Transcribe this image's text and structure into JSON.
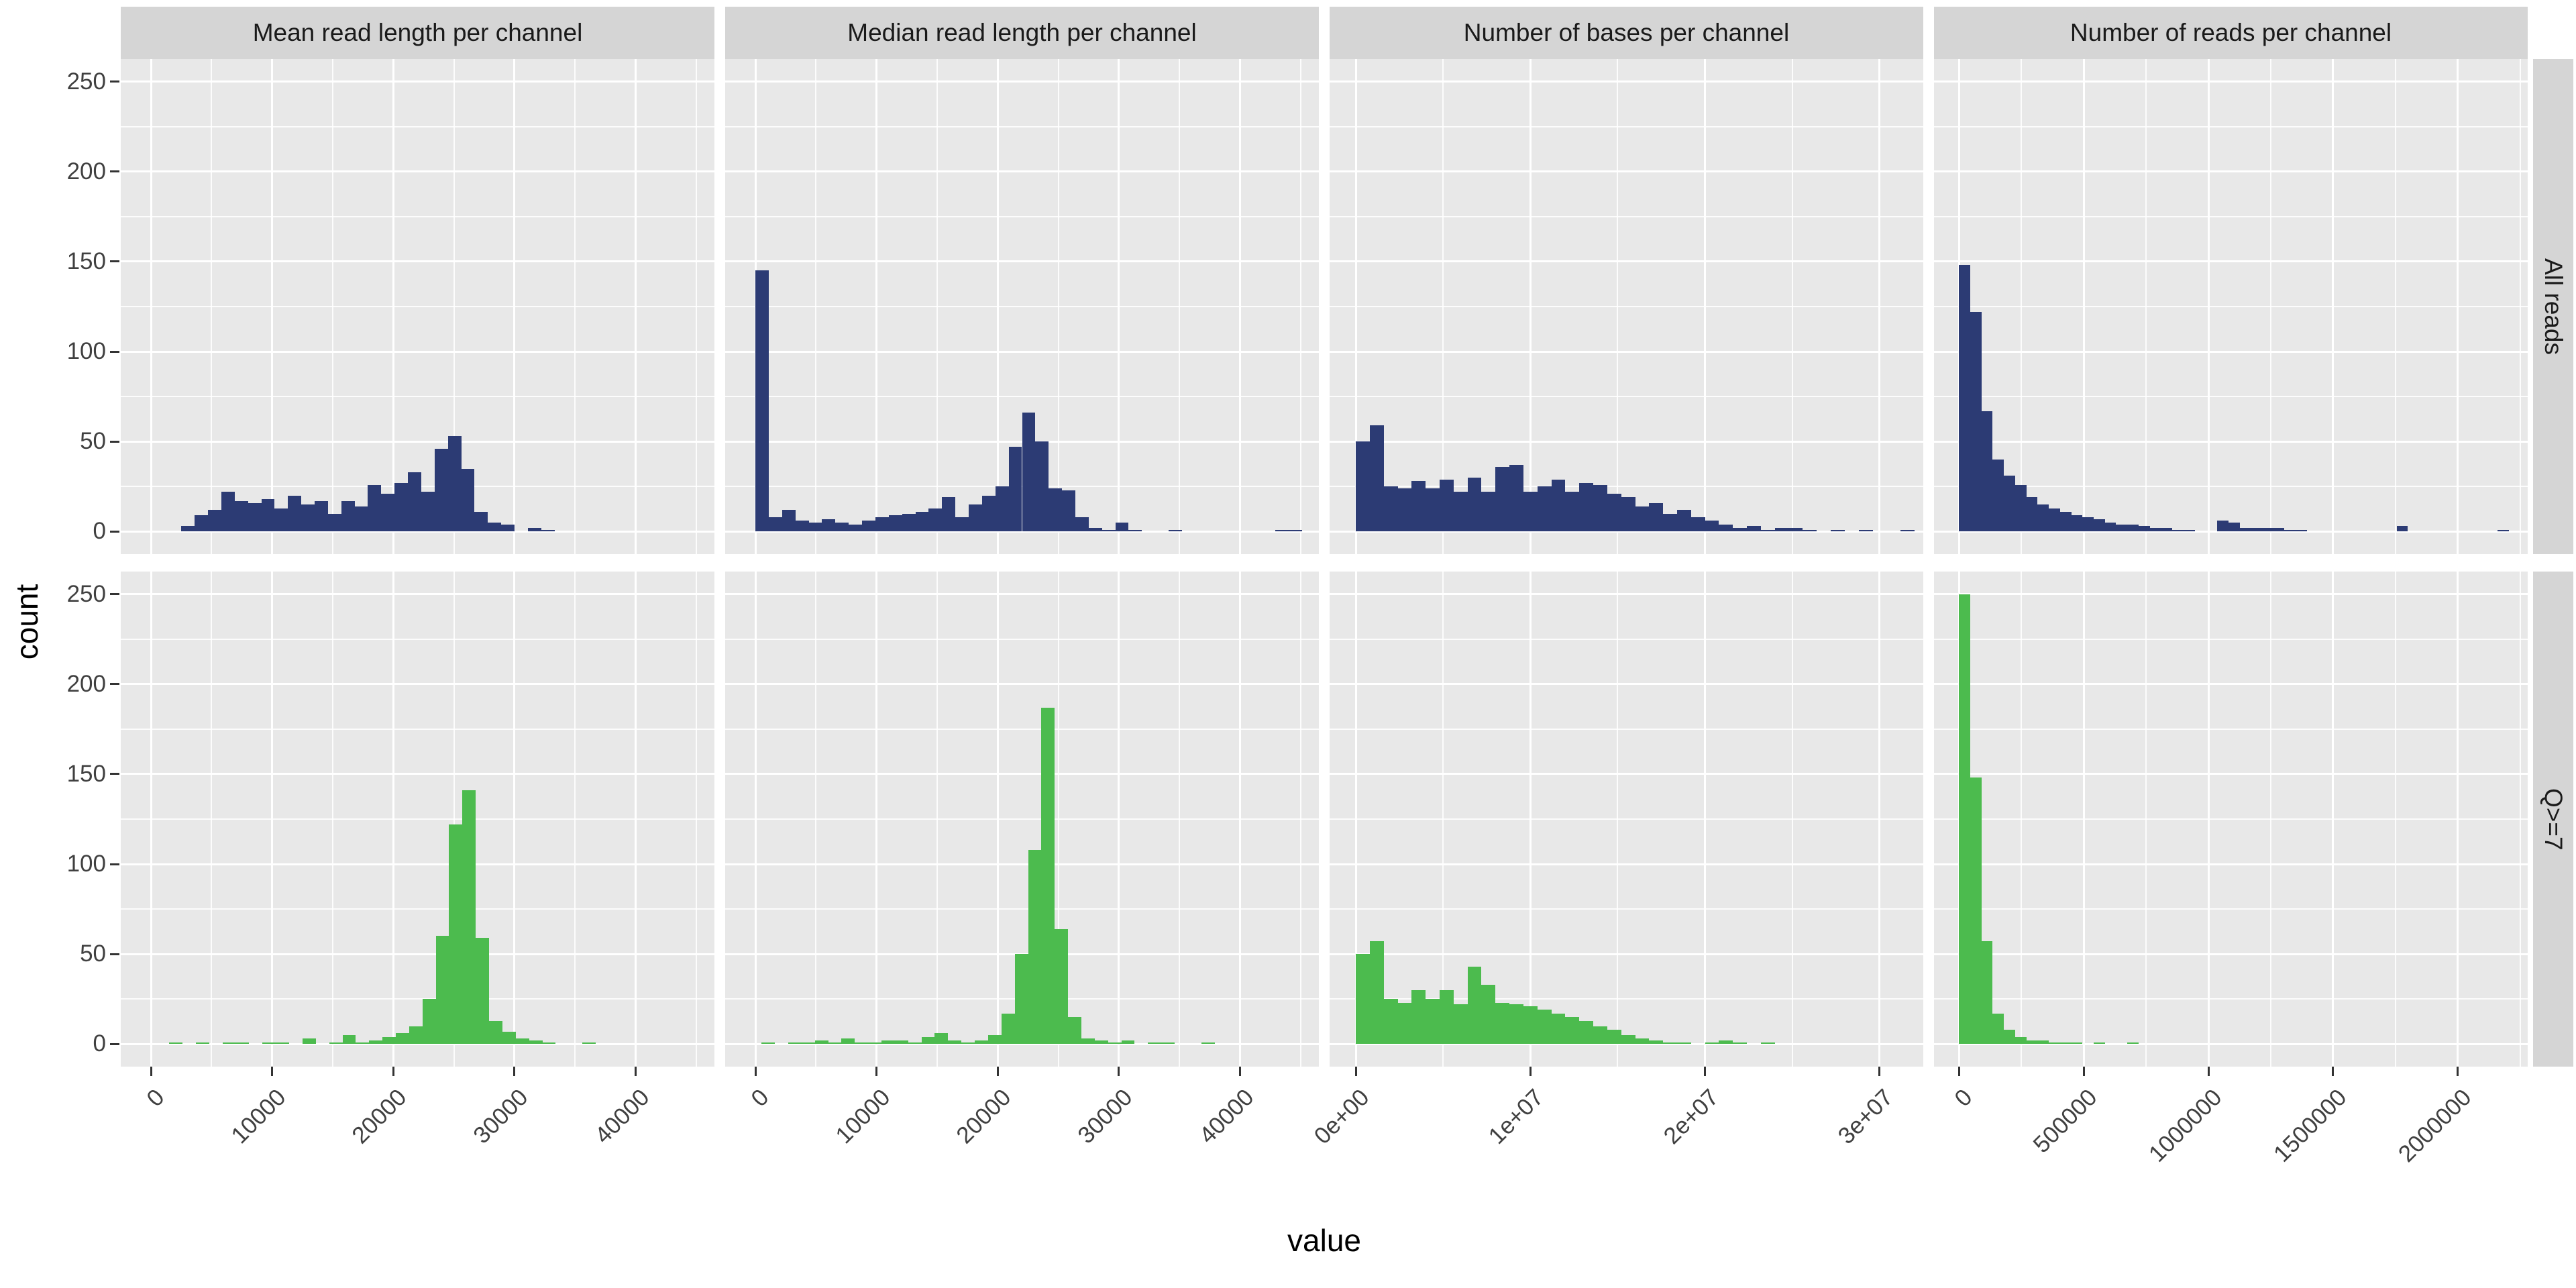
{
  "chart_data": {
    "type": "bar",
    "subtype": "faceted-histogram",
    "xlabel": "value",
    "ylabel": "count",
    "facet_rows": [
      "All reads",
      "Q>=7"
    ],
    "legend_position": "none",
    "grid": "on",
    "colors": {
      "all_reads": "#2c3b74",
      "q7": "#4cbb4e",
      "panel_bg": "#e8e8e8",
      "strip_bg": "#d5d5d5",
      "grid": "#ffffff",
      "tick_text": "#404040"
    },
    "y_axis": {
      "range": [
        -12.5,
        262.5
      ],
      "major_ticks": [
        0,
        50,
        100,
        150,
        200,
        250
      ],
      "minor_ticks": [
        25,
        75,
        125,
        175,
        225
      ]
    },
    "columns": [
      {
        "title": "Mean read length per channel",
        "x_range": [
          -2500,
          46500
        ],
        "ticks": [
          {
            "v": 0,
            "label": "0"
          },
          {
            "v": 10000,
            "label": "10000"
          },
          {
            "v": 20000,
            "label": "20000"
          },
          {
            "v": 30000,
            "label": "30000"
          },
          {
            "v": 40000,
            "label": "40000"
          }
        ]
      },
      {
        "title": "Median read length per channel",
        "x_range": [
          -2500,
          46500
        ],
        "ticks": [
          {
            "v": 0,
            "label": "0"
          },
          {
            "v": 10000,
            "label": "10000"
          },
          {
            "v": 20000,
            "label": "20000"
          },
          {
            "v": 30000,
            "label": "30000"
          },
          {
            "v": 40000,
            "label": "40000"
          }
        ]
      },
      {
        "title": "Number of bases per channel",
        "x_range": [
          -1500000,
          32500000
        ],
        "ticks": [
          {
            "v": 0,
            "label": "0e+00"
          },
          {
            "v": 10000000,
            "label": "1e+07"
          },
          {
            "v": 20000000,
            "label": "2e+07"
          },
          {
            "v": 30000000,
            "label": "3e+07"
          }
        ]
      },
      {
        "title": "Number of reads per channel",
        "x_range": [
          -100000,
          2280000
        ],
        "ticks": [
          {
            "v": 0,
            "label": "0"
          },
          {
            "v": 500000,
            "label": "500000"
          },
          {
            "v": 1000000,
            "label": "1000000"
          },
          {
            "v": 1500000,
            "label": "1500000"
          },
          {
            "v": 2000000,
            "label": "2000000"
          }
        ]
      }
    ],
    "panels": [
      {
        "row": 0,
        "col": 0,
        "series": "All reads",
        "color": "#2c3b74",
        "bin_start": 2500,
        "bin_width": 1100,
        "counts": [
          3,
          9,
          12,
          22,
          17,
          16,
          18,
          13,
          20,
          15,
          17,
          10,
          17,
          14,
          26,
          21,
          27,
          33,
          22,
          46,
          53,
          35,
          11,
          5,
          4,
          0,
          2,
          1
        ]
      },
      {
        "row": 0,
        "col": 1,
        "series": "All reads",
        "color": "#2c3b74",
        "bin_start": 0,
        "bin_width": 1100,
        "counts": [
          145,
          8,
          12,
          6,
          5,
          7,
          5,
          4,
          6,
          8,
          9,
          10,
          11,
          13,
          19,
          8,
          15,
          20,
          25,
          47,
          66,
          50,
          24,
          23,
          8,
          2,
          1,
          5,
          1,
          0,
          0,
          1,
          0,
          0,
          0,
          0,
          0,
          0,
          0,
          1,
          1
        ]
      },
      {
        "row": 0,
        "col": 2,
        "series": "All reads",
        "color": "#2c3b74",
        "bin_start": 0,
        "bin_width": 800000,
        "counts": [
          50,
          59,
          25,
          24,
          28,
          24,
          29,
          22,
          30,
          22,
          36,
          37,
          22,
          25,
          29,
          22,
          27,
          26,
          21,
          19,
          14,
          16,
          10,
          12,
          8,
          6,
          4,
          2,
          3,
          1,
          2,
          2,
          1,
          0,
          1,
          0,
          1,
          0,
          0,
          1
        ]
      },
      {
        "row": 0,
        "col": 3,
        "series": "All reads",
        "color": "#2c3b74",
        "bin_start": 0,
        "bin_width": 45000,
        "counts": [
          148,
          122,
          67,
          40,
          31,
          26,
          19,
          15,
          13,
          11,
          9,
          8,
          7,
          5,
          4,
          4,
          3,
          2,
          2,
          1,
          1,
          0,
          0,
          6,
          5,
          2,
          2,
          2,
          2,
          1,
          1,
          0,
          0,
          0,
          0,
          0,
          0,
          0,
          0,
          3,
          0,
          0,
          0,
          0,
          0,
          0,
          0,
          0,
          1
        ]
      },
      {
        "row": 1,
        "col": 0,
        "series": "Q>=7",
        "color": "#4cbb4e",
        "bin_start": 1500,
        "bin_width": 1100,
        "counts": [
          1,
          0,
          1,
          0,
          1,
          1,
          0,
          1,
          1,
          0,
          3,
          0,
          1,
          5,
          1,
          2,
          4,
          6,
          10,
          25,
          60,
          122,
          141,
          59,
          13,
          7,
          3,
          2,
          1,
          0,
          0,
          1
        ]
      },
      {
        "row": 1,
        "col": 1,
        "series": "Q>=7",
        "color": "#4cbb4e",
        "bin_start": 500,
        "bin_width": 1100,
        "counts": [
          1,
          0,
          1,
          1,
          2,
          1,
          3,
          1,
          1,
          2,
          2,
          1,
          4,
          6,
          2,
          1,
          2,
          5,
          17,
          50,
          108,
          187,
          64,
          15,
          3,
          2,
          1,
          2,
          0,
          1,
          1,
          0,
          0,
          1
        ]
      },
      {
        "row": 1,
        "col": 2,
        "series": "Q>=7",
        "color": "#4cbb4e",
        "bin_start": 0,
        "bin_width": 800000,
        "counts": [
          50,
          57,
          25,
          23,
          30,
          25,
          30,
          22,
          43,
          33,
          23,
          22,
          21,
          19,
          17,
          15,
          13,
          10,
          8,
          5,
          3,
          2,
          1,
          1,
          0,
          1,
          2,
          1,
          0,
          1
        ]
      },
      {
        "row": 1,
        "col": 3,
        "series": "Q>=7",
        "color": "#4cbb4e",
        "bin_start": 0,
        "bin_width": 45000,
        "counts": [
          250,
          148,
          57,
          17,
          8,
          4,
          2,
          2,
          1,
          1,
          1,
          0,
          1,
          0,
          0,
          1
        ]
      }
    ]
  }
}
